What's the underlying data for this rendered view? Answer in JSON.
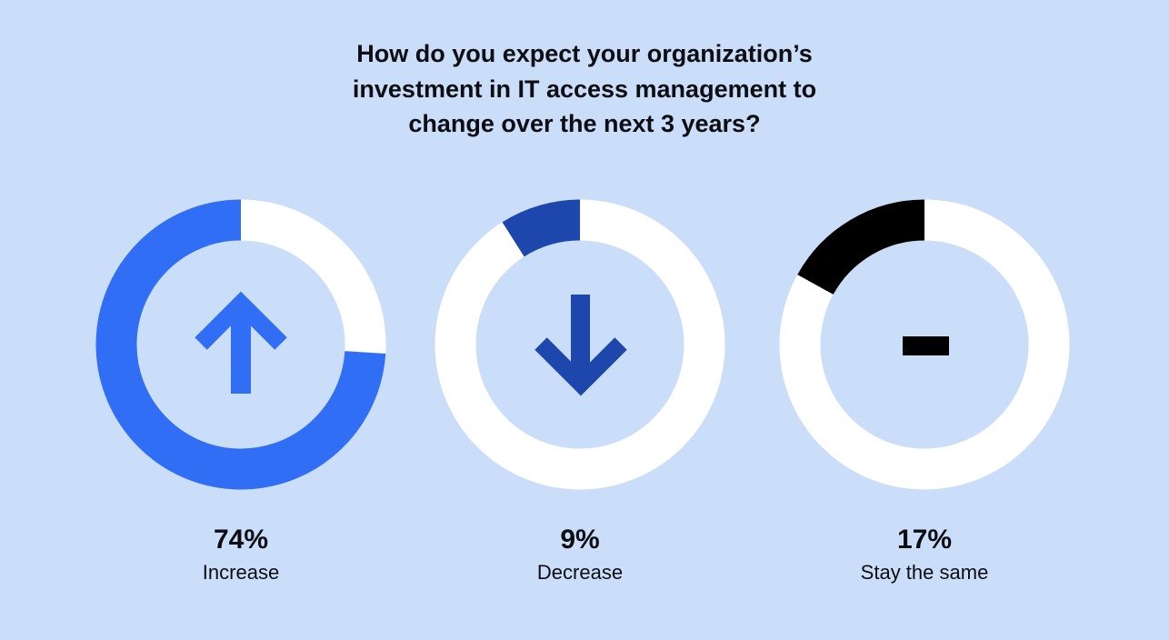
{
  "chart_data": {
    "type": "pie",
    "title_lines": [
      "How do you expect your organization’s",
      "investment in IT access management to",
      "change over the next 3 years?"
    ],
    "categories": [
      "Increase",
      "Decrease",
      "Stay the same"
    ],
    "values": [
      74,
      9,
      17
    ],
    "value_labels": [
      "74%",
      "9%",
      "17%"
    ],
    "unit": "%",
    "colors": [
      "#306ef5",
      "#1e47ad",
      "#000000"
    ],
    "ring_background_color": "#ffffff",
    "icons": [
      "arrow-up-icon",
      "arrow-down-icon",
      "minus-icon"
    ]
  }
}
